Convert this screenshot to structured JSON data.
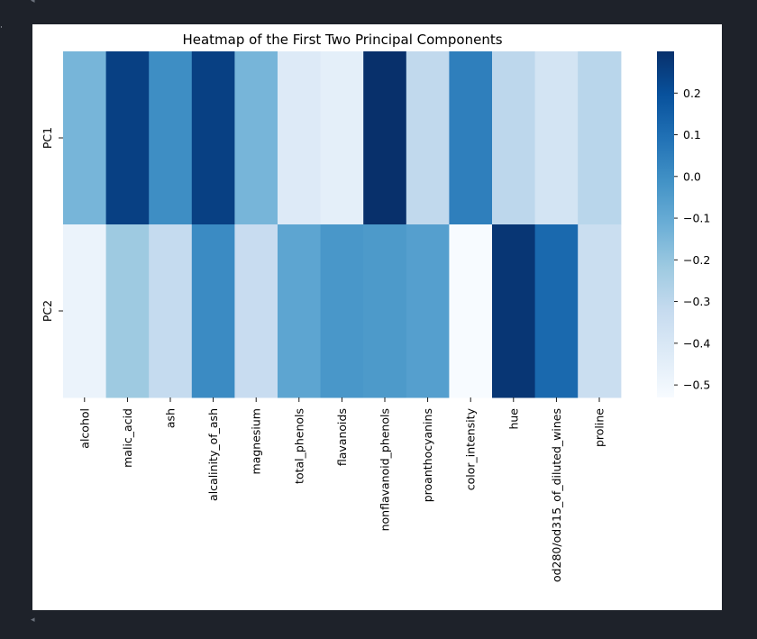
{
  "chart_data": {
    "type": "heatmap",
    "title": "Heatmap of the First Two Principal Components",
    "rows": [
      "PC1",
      "PC2"
    ],
    "columns": [
      "alcohol",
      "malic_acid",
      "ash",
      "alcalinity_of_ash",
      "magnesium",
      "total_phenols",
      "flavanoids",
      "nonflavanoid_phenols",
      "proanthocyanins",
      "color_intensity",
      "hue",
      "od280/od315_of_diluted_wines",
      "proline"
    ],
    "values": [
      [
        -0.14,
        0.25,
        0.0,
        0.25,
        -0.14,
        -0.42,
        -0.45,
        0.3,
        -0.31,
        0.05,
        -0.3,
        -0.38,
        -0.29
      ],
      [
        -0.48,
        -0.22,
        -0.32,
        0.01,
        -0.33,
        -0.08,
        -0.03,
        -0.04,
        -0.06,
        -0.53,
        0.28,
        0.12,
        -0.34
      ]
    ],
    "colorbar": {
      "colormap": "Blues",
      "vmin": -0.53,
      "vmax": 0.3,
      "ticks": [
        0.2,
        0.1,
        0.0,
        -0.1,
        -0.2,
        -0.3,
        -0.4,
        -0.5
      ],
      "tick_labels": [
        "0.2",
        "0.1",
        "0.0",
        "−0.1",
        "−0.2",
        "−0.3",
        "−0.4",
        "−0.5"
      ]
    },
    "xlabel": "",
    "ylabel": "",
    "grid": false,
    "legend": "colorbar-right"
  },
  "colors": {
    "window_background": "#1e222a",
    "panel_background": "#ffffff",
    "text": "#000000"
  }
}
